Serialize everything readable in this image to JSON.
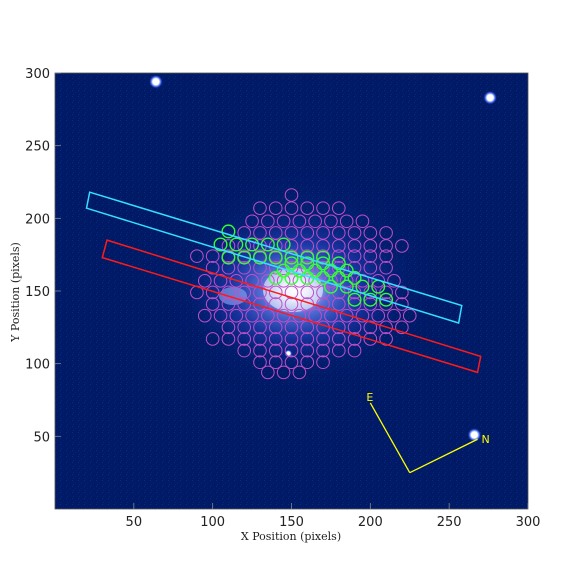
{
  "figure": {
    "x_axis_label": "X Position (pixels)",
    "y_axis_label": "Y Position (pixels)",
    "x_ticks": [
      "50",
      "100",
      "150",
      "200",
      "250",
      "300"
    ],
    "y_ticks": [
      "50",
      "100",
      "150",
      "200",
      "250",
      "300"
    ],
    "x_range": [
      0,
      300
    ],
    "y_range": [
      0,
      300
    ],
    "compass": {
      "east_label": "E",
      "north_label": "N"
    },
    "colors": {
      "background_sky": "#001a66",
      "galaxy_core": "#e8eeff",
      "slit_cyan": "#33e0ff",
      "slit_red": "#ff1a1a",
      "fibers_magenta": "#c050c8",
      "fibers_green": "#33ff33",
      "compass": "#ffff00"
    }
  },
  "chart_data": {
    "type": "scatter",
    "title": "",
    "xlabel": "X Position (pixels)",
    "ylabel": "Y Position (pixels)",
    "xlim": [
      0,
      300
    ],
    "ylim": [
      0,
      300
    ],
    "slits": [
      {
        "color": "cyan",
        "corners": [
          [
            20,
            207
          ],
          [
            22,
            218
          ],
          [
            258,
            140
          ],
          [
            256,
            128
          ]
        ]
      },
      {
        "color": "red",
        "corners": [
          [
            30,
            173
          ],
          [
            33,
            185
          ],
          [
            270,
            105
          ],
          [
            268,
            94
          ]
        ]
      }
    ],
    "compass": {
      "vertex": [
        225,
        25
      ],
      "east_end": [
        200,
        73
      ],
      "north_end": [
        268,
        48
      ]
    },
    "bright_stars": [
      [
        64,
        294
      ],
      [
        266,
        51
      ],
      [
        276,
        283
      ],
      [
        148,
        107
      ]
    ],
    "green_fibers": [
      [
        110,
        191
      ],
      [
        105,
        182
      ],
      [
        115,
        182
      ],
      [
        125,
        182
      ],
      [
        135,
        182
      ],
      [
        145,
        182
      ],
      [
        110,
        173
      ],
      [
        120,
        173
      ],
      [
        130,
        173
      ],
      [
        140,
        173
      ],
      [
        150,
        173
      ],
      [
        160,
        173
      ],
      [
        170,
        173
      ],
      [
        150,
        169
      ],
      [
        160,
        169
      ],
      [
        170,
        169
      ],
      [
        180,
        169
      ],
      [
        145,
        164
      ],
      [
        155,
        164
      ],
      [
        165,
        164
      ],
      [
        175,
        164
      ],
      [
        185,
        164
      ],
      [
        140,
        159
      ],
      [
        150,
        159
      ],
      [
        160,
        159
      ],
      [
        170,
        159
      ],
      [
        180,
        159
      ],
      [
        190,
        159
      ],
      [
        175,
        153
      ],
      [
        185,
        153
      ],
      [
        195,
        153
      ],
      [
        205,
        153
      ],
      [
        190,
        144
      ],
      [
        200,
        144
      ],
      [
        210,
        144
      ]
    ],
    "magenta_fiber_rows": [
      {
        "y": 216,
        "x_start": 150,
        "count": 1
      },
      {
        "y": 207,
        "x_start": 130,
        "count": 6
      },
      {
        "y": 198,
        "x_start": 125,
        "count": 8
      },
      {
        "y": 190,
        "x_start": 120,
        "count": 10
      },
      {
        "y": 181,
        "x_start": 110,
        "count": 12
      },
      {
        "y": 174,
        "x_start": 90,
        "count": 13
      },
      {
        "y": 166,
        "x_start": 100,
        "count": 12
      },
      {
        "y": 157,
        "x_start": 95,
        "count": 13
      },
      {
        "y": 149,
        "x_start": 90,
        "count": 14
      },
      {
        "y": 141,
        "x_start": 100,
        "count": 13
      },
      {
        "y": 133,
        "x_start": 95,
        "count": 14
      },
      {
        "y": 125,
        "x_start": 110,
        "count": 12
      },
      {
        "y": 117,
        "x_start": 100,
        "count": 12
      },
      {
        "y": 109,
        "x_start": 120,
        "count": 8
      },
      {
        "y": 101,
        "x_start": 130,
        "count": 5
      },
      {
        "y": 94,
        "x_start": 135,
        "count": 3
      }
    ]
  }
}
